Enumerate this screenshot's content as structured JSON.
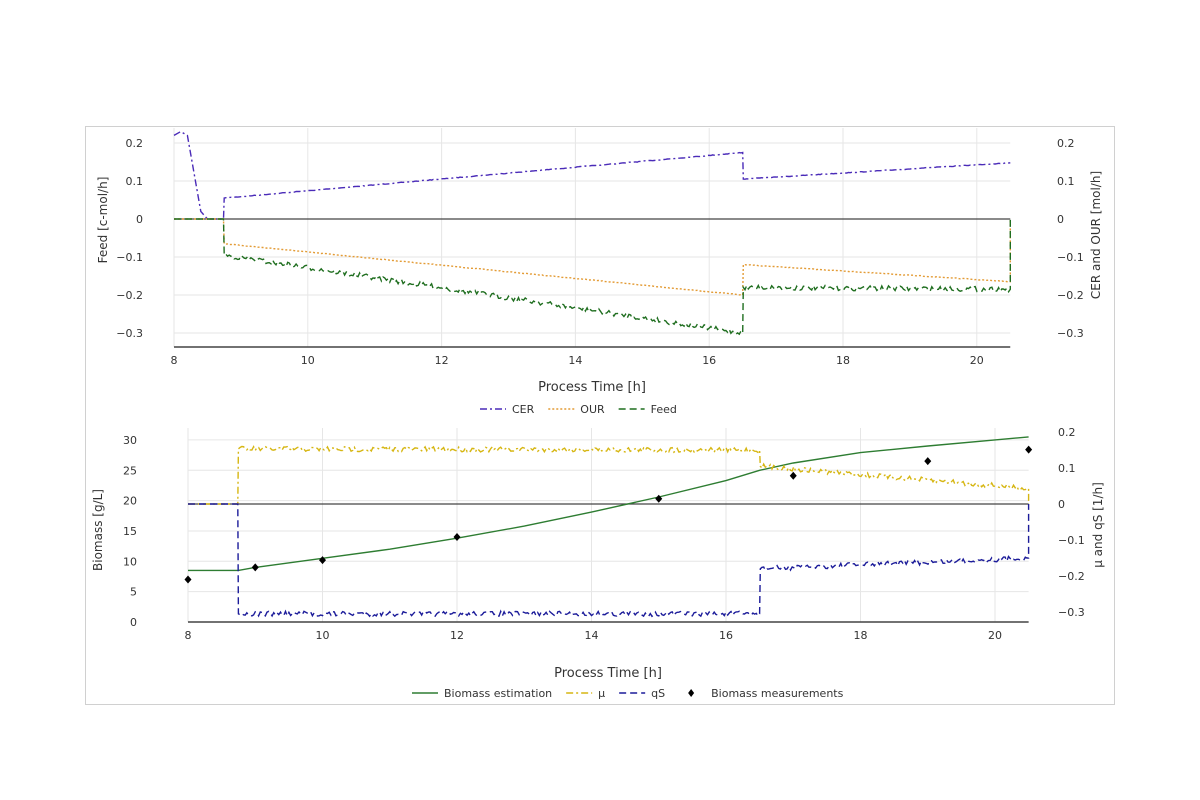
{
  "chart_data": [
    {
      "type": "line",
      "xlabel": "Process Time [h]",
      "ylabel_left": "Feed [c-mol/h]",
      "ylabel_right": "CER and OUR [mol/h]",
      "xlim": [
        8,
        20.5
      ],
      "ylim_left": [
        -0.3,
        0.2
      ],
      "ylim_right": [
        -0.3,
        0.2
      ],
      "xticks": [
        8,
        10,
        12,
        14,
        16,
        18,
        20
      ],
      "yticks_left": [
        "0.2",
        "0.1",
        "0",
        "−0.1",
        "−0.2",
        "−0.3"
      ],
      "yticks_right": [
        "0.2",
        "0.1",
        "0",
        "−0.1",
        "−0.2",
        "−0.3"
      ],
      "ytick_values": [
        0.2,
        0.1,
        0,
        -0.1,
        -0.2,
        -0.3
      ],
      "grid": true,
      "legend": "bottom",
      "series": [
        {
          "name": "CER",
          "color": "#4a2bb8",
          "dash": "dashdot",
          "axis": "right",
          "x": [
            8,
            8.1,
            8.2,
            8.3,
            8.4,
            8.5,
            8.74,
            8.75,
            16.5,
            16.51,
            20.5
          ],
          "y": [
            0.22,
            0.23,
            0.22,
            0.12,
            0.02,
            0.0,
            0.0,
            0.055,
            0.175,
            0.105,
            0.148
          ]
        },
        {
          "name": "OUR",
          "color": "#e39b35",
          "dash": "dot",
          "axis": "right",
          "x": [
            8,
            8.74,
            8.75,
            16.5,
            16.51,
            20.5,
            20.5
          ],
          "y": [
            0,
            0,
            -0.065,
            -0.2,
            -0.12,
            -0.165,
            0
          ]
        },
        {
          "name": "Feed",
          "color": "#1f6e1f",
          "dash": "dash",
          "axis": "left",
          "x": [
            8,
            8.74,
            8.75,
            16.5,
            16.51,
            20.5,
            20.5
          ],
          "y": [
            0,
            0,
            -0.095,
            -0.3,
            -0.18,
            -0.185,
            0
          ]
        }
      ]
    },
    {
      "type": "line",
      "xlabel": "Process Time [h]",
      "ylabel_left": "Biomass [g/L]",
      "ylabel_right": "μ and qS [1/h]",
      "xlim": [
        8,
        20.5
      ],
      "ylim_left": [
        0,
        30
      ],
      "ylim_right": [
        -0.3,
        0.2
      ],
      "xticks": [
        8,
        10,
        12,
        14,
        16,
        18,
        20
      ],
      "yticks_left": [
        "30",
        "25",
        "20",
        "15",
        "10",
        "5",
        "0"
      ],
      "ytick_left_values": [
        30,
        25,
        20,
        15,
        10,
        5,
        0
      ],
      "yticks_right": [
        "0.2",
        "0.1",
        "0",
        "−0.1",
        "−0.2",
        "−0.3"
      ],
      "ytick_right_values": [
        0.2,
        0.1,
        0,
        -0.1,
        -0.2,
        -0.3
      ],
      "grid": true,
      "legend": "bottom",
      "series": [
        {
          "name": "Biomass estimation",
          "color": "#2e7d32",
          "dash": "solid",
          "axis": "left",
          "x": [
            8,
            8.75,
            9,
            10,
            11,
            12,
            13,
            14,
            15,
            16,
            16.5,
            17,
            18,
            19,
            20,
            20.5
          ],
          "y": [
            8.5,
            8.5,
            9,
            10.5,
            12,
            13.8,
            15.8,
            18.1,
            20.6,
            23.3,
            25.0,
            26.2,
            27.9,
            29.0,
            30.0,
            30.5
          ]
        },
        {
          "name": "μ",
          "color": "#d6b612",
          "dash": "dashdot",
          "axis": "right",
          "x": [
            8,
            8.74,
            8.75,
            16.5,
            16.51,
            20.5,
            20.5
          ],
          "y": [
            0,
            0,
            0.153,
            0.15,
            0.105,
            0.043,
            0
          ]
        },
        {
          "name": "qS",
          "color": "#1c1c9a",
          "dash": "dash",
          "axis": "right",
          "x": [
            8,
            8.74,
            8.75,
            16.5,
            16.51,
            20.5,
            20.5
          ],
          "y": [
            0,
            0,
            -0.305,
            -0.305,
            -0.18,
            -0.15,
            0
          ]
        },
        {
          "name": "Biomass measurements",
          "color": "#000000",
          "marker": "diamond",
          "axis": "left",
          "x": [
            8,
            9,
            10,
            12,
            15,
            17,
            19,
            20.5
          ],
          "y": [
            7,
            9,
            10.2,
            14,
            20.3,
            24.1,
            26.5,
            28.4
          ]
        }
      ]
    }
  ]
}
